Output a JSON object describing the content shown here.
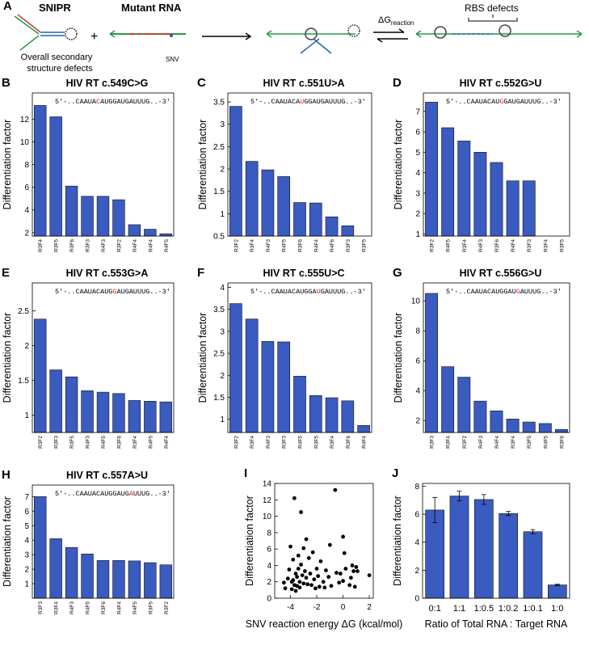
{
  "diagram": {
    "panel": "A",
    "snipr": "SNIPR",
    "plus": "+",
    "mutant": "Mutant RNA",
    "snv": "SNV",
    "defects": [
      "Overall secondary",
      "structure defects"
    ],
    "dg": "ΔG",
    "dg_sub": "reaction",
    "rbs": "RBS defects"
  },
  "chart_data": [
    {
      "type": "bar",
      "panel": "B",
      "title": "HIV RT c.549C>G",
      "ylabel": "Differentiation factor",
      "annotation": [
        "5′-..CAAUA",
        "C",
        "AUGGAUGAUUUG..-3′"
      ],
      "categories": [
        "R3F4",
        "R3F5",
        "R3F6",
        "R3F3",
        "R4F3",
        "R3F2",
        "R4F4",
        "R4F4",
        "R4F5"
      ],
      "values": [
        13.2,
        12.2,
        6.1,
        5.2,
        5.2,
        4.9,
        2.7,
        2.3,
        1.9
      ],
      "color": "#3a5bbf",
      "ylim": [
        1.7,
        14.3
      ],
      "yticks": [
        2,
        4,
        6,
        8,
        10,
        12
      ]
    },
    {
      "type": "bar",
      "panel": "C",
      "title": "HIV RT c.551U>A",
      "ylabel": "Differentiation factor",
      "annotation": [
        "5′-..CAAUACA",
        "U",
        "GGAUGAUUUG..-3′"
      ],
      "categories": [
        "R3F2",
        "R3F4",
        "R4F3",
        "R4F5",
        "R3F6",
        "R4F4",
        "R4F6",
        "R3F3",
        "R3F5"
      ],
      "values": [
        3.4,
        2.17,
        1.98,
        1.83,
        1.25,
        1.24,
        0.93,
        0.73,
        0.5
      ],
      "color": "#3a5bbf",
      "ylim": [
        0.5,
        3.7
      ],
      "yticks": [
        0.5,
        1,
        1.5,
        2,
        2.5,
        3,
        3.5
      ]
    },
    {
      "type": "bar",
      "panel": "D",
      "title": "HIV RT c.552G>U",
      "ylabel": "Differentiation factor",
      "annotation": [
        "5′-..CAAUACAU",
        "G",
        "GAUGAUUUG..-3′"
      ],
      "categories": [
        "R3F2",
        "R4F5",
        "R3F4",
        "R4F3",
        "R3F6",
        "R4F4",
        "R3F3",
        "R3F4",
        "R3F5"
      ],
      "values": [
        7.45,
        6.2,
        5.55,
        5.0,
        4.5,
        3.6,
        3.6,
        0.9,
        0.9
      ],
      "color": "#3a5bbf",
      "ylim": [
        0.9,
        7.9
      ],
      "yticks": [
        1,
        2,
        3,
        4,
        5,
        6,
        7
      ]
    },
    {
      "type": "bar",
      "panel": "E",
      "title": "HIV RT c.553G>A",
      "ylabel": "Differentiation factor",
      "annotation": [
        "5′-..CAAUACAUG",
        "G",
        "AUGAUUUG..-3′"
      ],
      "categories": [
        "R3F2",
        "R3F3",
        "R3F5",
        "R4F3",
        "R4F5",
        "R3F6",
        "R3F4",
        "R4F5",
        "R4F4"
      ],
      "values": [
        2.38,
        1.65,
        1.55,
        1.35,
        1.33,
        1.31,
        1.21,
        1.2,
        1.19
      ],
      "color": "#3a5bbf",
      "ylim": [
        0.75,
        2.9
      ],
      "yticks": [
        1,
        1.5,
        2,
        2.5
      ]
    },
    {
      "type": "bar",
      "panel": "F",
      "title": "HIV RT c.555U>C",
      "ylabel": "Differentiation factor",
      "annotation": [
        "5′-..CAAUACAUGGA",
        "U",
        "GAUUUG..-3′"
      ],
      "categories": [
        "R3F2",
        "R3F4",
        "R4F3",
        "R3F3",
        "R4F5",
        "R3F5",
        "R3F4",
        "R3F6",
        "R4F4"
      ],
      "values": [
        3.63,
        3.28,
        2.77,
        2.76,
        1.98,
        1.54,
        1.49,
        1.42,
        0.86
      ],
      "color": "#3a5bbf",
      "ylim": [
        0.7,
        4.1
      ],
      "yticks": [
        1,
        1.5,
        2,
        2.5,
        3,
        3.5,
        4
      ]
    },
    {
      "type": "bar",
      "panel": "G",
      "title": "HIV RT c.556G>U",
      "ylabel": "Differentiation factor",
      "annotation": [
        "5′-..CAAUACAUGGAU",
        "G",
        "AUUUG..-3′"
      ],
      "categories": [
        "R3F3",
        "R3F4",
        "R3F2",
        "R4F3",
        "R4F4",
        "R3F4",
        "R3F5",
        "R4F5",
        "R3F6"
      ],
      "values": [
        10.5,
        5.6,
        4.9,
        3.3,
        2.65,
        2.1,
        1.9,
        1.8,
        1.4
      ],
      "color": "#3a5bbf",
      "ylim": [
        1.2,
        11.2
      ],
      "yticks": [
        2,
        4,
        6,
        8,
        10
      ]
    },
    {
      "type": "bar",
      "panel": "H",
      "title": "HIV RT c.557A>U",
      "ylabel": "Differentiation factor",
      "annotation": [
        "5′-..CAAUACAUGGAUG",
        "A",
        "UUUG..-3′"
      ],
      "categories": [
        "R3F3",
        "R3F4",
        "R4F3",
        "R4F5",
        "R3F6",
        "R4F4",
        "R4F5",
        "R3F5",
        "R3F2"
      ],
      "values": [
        7.0,
        4.1,
        3.5,
        3.05,
        2.6,
        2.6,
        2.57,
        2.45,
        2.3
      ],
      "color": "#3a5bbf",
      "ylim": [
        0,
        7.8
      ],
      "yticks": [
        1,
        2,
        3,
        4,
        5,
        6,
        7
      ]
    },
    {
      "type": "scatter",
      "panel": "I",
      "ylabel": "Differentiation factor",
      "xlabel": "SNV reaction energy ΔG (kcal/mol)",
      "color": "#000000",
      "x": [
        -4.5,
        -4.4,
        -4.2,
        -4.1,
        -4.0,
        -3.9,
        -3.9,
        -3.8,
        -3.8,
        -3.7,
        -3.7,
        -3.6,
        -3.6,
        -3.5,
        -3.5,
        -3.4,
        -3.4,
        -3.3,
        -3.3,
        -3.2,
        -3.2,
        -3.1,
        -3.0,
        -3.0,
        -2.9,
        -2.8,
        -2.8,
        -2.7,
        -2.6,
        -2.5,
        -2.4,
        -2.3,
        -2.2,
        -2.1,
        -2.0,
        -1.9,
        -1.8,
        -1.7,
        -1.5,
        -1.4,
        -1.3,
        -1.1,
        -1.0,
        -0.9,
        -0.6,
        -0.5,
        -0.3,
        -0.2,
        0.0,
        0.0,
        0.1,
        0.2,
        0.5,
        0.6,
        0.7,
        0.8,
        0.9,
        1.0,
        1.1,
        2.0
      ],
      "values": [
        1.9,
        1.2,
        2.4,
        3.5,
        6.3,
        2.0,
        1.1,
        4.7,
        2.2,
        12.2,
        1.6,
        3.0,
        0.9,
        2.6,
        1.5,
        5.2,
        3.6,
        2.0,
        1.3,
        10.5,
        4.1,
        2.8,
        6.1,
        1.8,
        3.3,
        7.2,
        2.5,
        1.7,
        4.9,
        3.0,
        1.6,
        5.6,
        2.3,
        1.2,
        3.6,
        2.7,
        1.4,
        4.5,
        2.0,
        1.3,
        3.4,
        2.6,
        6.5,
        1.5,
        13.2,
        3.1,
        1.9,
        3.0,
        7.5,
        2.1,
        5.5,
        3.6,
        1.6,
        2.5,
        4.0,
        3.3,
        1.4,
        3.8,
        3.3,
        2.8
      ],
      "xlim": [
        -5.2,
        2.3
      ],
      "xticks": [
        -4,
        -2,
        0,
        2
      ],
      "ylim": [
        0,
        14
      ],
      "yticks": [
        0,
        2,
        4,
        6,
        8,
        10,
        12,
        14
      ]
    },
    {
      "type": "bar",
      "panel": "J",
      "ylabel": "Differentiation factor",
      "xlabel": "Ratio of Total RNA : Target RNA",
      "categories": [
        "0:1",
        "1:1",
        "1:0.5",
        "1:0.2",
        "1:0.1",
        "1:0"
      ],
      "values": [
        6.3,
        7.3,
        7.05,
        6.05,
        4.75,
        0.95
      ],
      "errors": [
        0.9,
        0.35,
        0.35,
        0.15,
        0.15,
        0.05
      ],
      "color": "#3a5bbf",
      "ylim": [
        0,
        8.2
      ],
      "yticks": [
        0,
        2,
        4,
        6,
        8
      ]
    }
  ]
}
